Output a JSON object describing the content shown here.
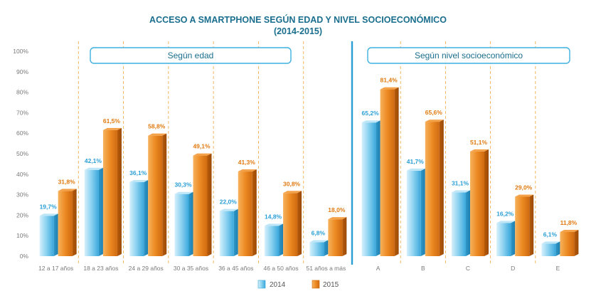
{
  "chart_data": {
    "type": "bar",
    "title": "ACCESO A SMARTPHONE SEGÚN EDAD Y NIVEL SOCIOECONÓMICO",
    "subtitle": "(2014-2015)",
    "ylim": [
      0,
      100
    ],
    "yticks": [
      "0%",
      "10%",
      "20%",
      "30%",
      "40%",
      "50%",
      "60%",
      "70%",
      "80%",
      "90%",
      "100%"
    ],
    "grid": false,
    "legend_position": "bottom-center",
    "colors": {
      "2014": "#5fc0ea",
      "2015": "#e8821c"
    },
    "panels": [
      {
        "title": "Según edad",
        "categories": [
          "12 a 17 años",
          "18 a 23 años",
          "24 a 29 años",
          "30 a 35 años",
          "36 a 45 años",
          "46 a 50 años",
          "51 años a más"
        ],
        "series": [
          {
            "name": "2014",
            "values": [
              19.7,
              42.1,
              36.1,
              30.3,
              22.0,
              14.8,
              6.8
            ],
            "labels": [
              "19,7%",
              "42,1%",
              "36,1%",
              "30,3%",
              "22,0%",
              "14,8%",
              "6,8%"
            ]
          },
          {
            "name": "2015",
            "values": [
              31.8,
              61.5,
              58.8,
              49.1,
              41.3,
              30.8,
              18.0
            ],
            "labels": [
              "31,8%",
              "61,5%",
              "58,8%",
              "49,1%",
              "41,3%",
              "30,8%",
              "18,0%"
            ]
          }
        ]
      },
      {
        "title": "Según nivel socioeconómico",
        "categories": [
          "A",
          "B",
          "C",
          "D",
          "E"
        ],
        "series": [
          {
            "name": "2014",
            "values": [
              65.2,
              41.7,
              31.1,
              16.2,
              6.1
            ],
            "labels": [
              "65,2%",
              "41,7%",
              "31,1%",
              "16,2%",
              "6,1%"
            ]
          },
          {
            "name": "2015",
            "values": [
              81.4,
              65.6,
              51.1,
              29.0,
              11.8
            ],
            "labels": [
              "81,4%",
              "65,6%",
              "51,1%",
              "29,0%",
              "11,8%"
            ]
          }
        ]
      }
    ],
    "legend": [
      "2014",
      "2015"
    ]
  }
}
